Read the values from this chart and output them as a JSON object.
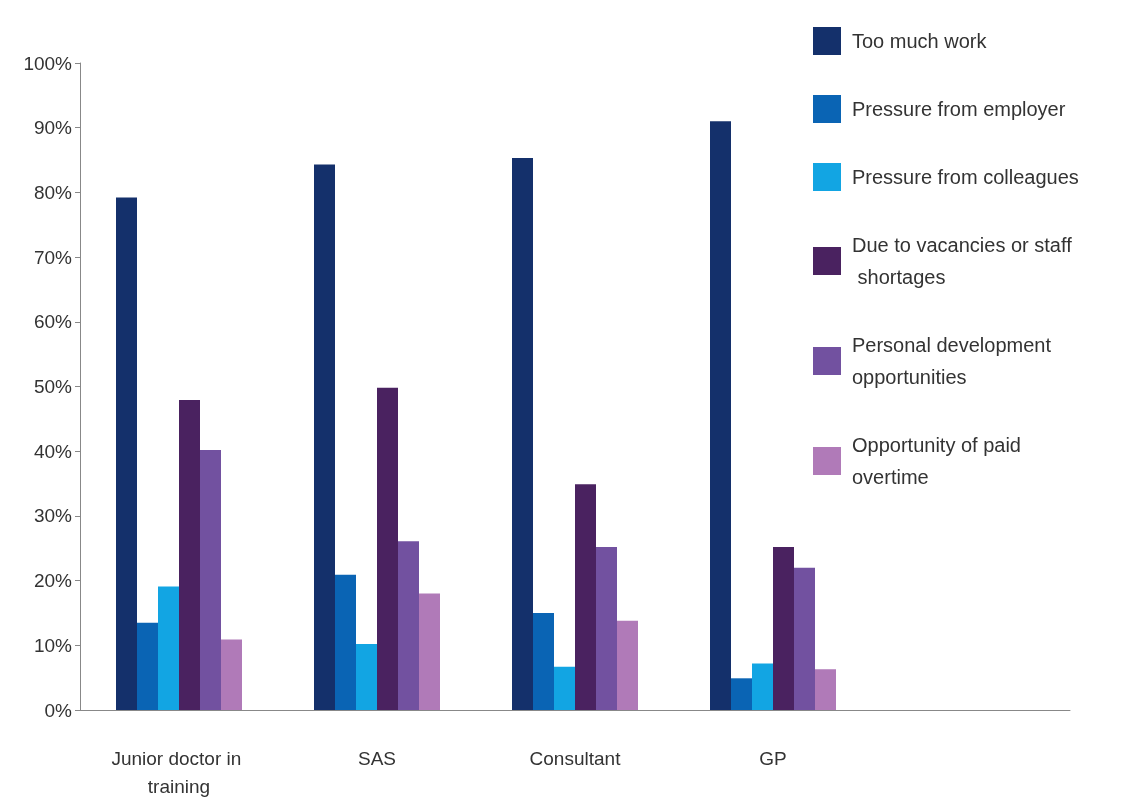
{
  "chart_data": {
    "type": "bar",
    "categories": [
      "Junior doctor in training",
      "SAS",
      "Consultant",
      "GP",
      null
    ],
    "series": [
      {
        "name": "Too much work",
        "color": "#14306b",
        "values": [
          79.2,
          84.3,
          85.3,
          91.0,
          null
        ]
      },
      {
        "name": "Pressure from employer",
        "color": "#0a64b4",
        "values": [
          13.5,
          20.9,
          15.0,
          4.9,
          null
        ]
      },
      {
        "name": "Pressure from colleagues",
        "color": "#12a5e3",
        "values": [
          19.1,
          10.2,
          6.7,
          7.2,
          null
        ]
      },
      {
        "name": "Due to vacancies or staff shortages",
        "color": "#4a2260",
        "values": [
          47.9,
          49.8,
          34.9,
          25.2,
          null
        ]
      },
      {
        "name": "Personal development opportunities",
        "color": "#7251a0",
        "values": [
          40.2,
          26.1,
          25.2,
          22.0,
          null
        ]
      },
      {
        "name": "Opportunity of paid overtime",
        "color": "#b07ab8",
        "values": [
          10.9,
          18.0,
          13.8,
          6.3,
          null
        ]
      }
    ],
    "ylim": [
      0,
      100
    ],
    "yticks": [
      {
        "value": 0,
        "label": "0%"
      },
      {
        "value": 10,
        "label": "10%"
      },
      {
        "value": 20,
        "label": "20%"
      },
      {
        "value": 30,
        "label": "30%"
      },
      {
        "value": 40,
        "label": "40%"
      },
      {
        "value": 50,
        "label": "50%"
      },
      {
        "value": 60,
        "label": "60%"
      },
      {
        "value": 70,
        "label": "70%"
      },
      {
        "value": 80,
        "label": "80%"
      },
      {
        "value": 90,
        "label": "90%"
      },
      {
        "value": 100,
        "label": "100%"
      }
    ],
    "grid": false,
    "legend": "top right"
  }
}
